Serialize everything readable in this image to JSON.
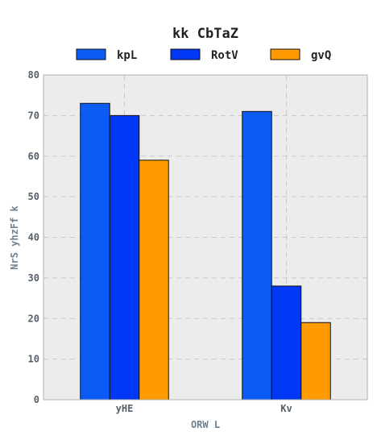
{
  "chart_data": {
    "type": "bar",
    "title": "kk   CbTaZ",
    "xlabel": "ORW L",
    "ylabel": "NrS yhzFf k",
    "categories": [
      "yHE",
      "Kv"
    ],
    "series": [
      {
        "name": "kpL",
        "values": [
          73,
          71
        ],
        "color": "#0a5cf5"
      },
      {
        "name": "RotV",
        "values": [
          70,
          28
        ],
        "color": "#0038f5"
      },
      {
        "name": "gvQ",
        "values": [
          59,
          19
        ],
        "color": "#ff9a00"
      }
    ],
    "ylim": [
      0,
      80
    ],
    "yticks": [
      "0",
      "10",
      "20",
      "30",
      "40",
      "50",
      "60",
      "70",
      "80"
    ],
    "grid": true,
    "legend_position": "top"
  }
}
